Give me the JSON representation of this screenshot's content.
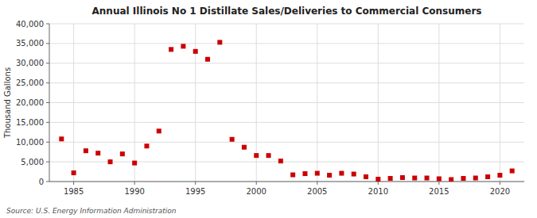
{
  "chart_data": {
    "type": "scatter",
    "title": "Annual Illinois No 1 Distillate Sales/Deliveries to Commercial Consumers",
    "ylabel": "Thousand Gallons",
    "annotations": [
      "Source: U.S. Energy Information Administration"
    ],
    "x": [
      1984,
      1985,
      1986,
      1987,
      1988,
      1989,
      1990,
      1991,
      1992,
      1993,
      1994,
      1995,
      1996,
      1997,
      1998,
      1999,
      2000,
      2001,
      2002,
      2003,
      2004,
      2005,
      2006,
      2007,
      2008,
      2009,
      2010,
      2011,
      2012,
      2013,
      2014,
      2015,
      2016,
      2017,
      2018,
      2019,
      2020,
      2021
    ],
    "values": [
      10800,
      2200,
      7800,
      7200,
      5000,
      7000,
      4700,
      9000,
      12800,
      33500,
      34300,
      33000,
      31000,
      35300,
      10700,
      8700,
      6600,
      6600,
      5200,
      1700,
      2000,
      2100,
      1600,
      2100,
      1900,
      1200,
      600,
      800,
      1000,
      900,
      900,
      700,
      500,
      800,
      900,
      1200,
      1600,
      2700
    ],
    "color": "#cc0000",
    "marker": "square",
    "xlim": [
      1983,
      2022
    ],
    "ylim": [
      0,
      40000
    ],
    "xticks": [
      1985,
      1990,
      1995,
      2000,
      2005,
      2010,
      2015,
      2020
    ],
    "yticks": [
      0,
      {
        "value": 5000,
        "label": "5,000"
      },
      {
        "value": 10000,
        "label": "10,000"
      },
      {
        "value": 15000,
        "label": "15,000"
      },
      {
        "value": 20000,
        "label": "20,000"
      },
      {
        "value": 25000,
        "label": "25,000"
      },
      {
        "value": 30000,
        "label": "30,000"
      },
      {
        "value": 35000,
        "label": "35,000"
      },
      {
        "value": 40000,
        "label": "40,000"
      }
    ],
    "grid": true
  }
}
